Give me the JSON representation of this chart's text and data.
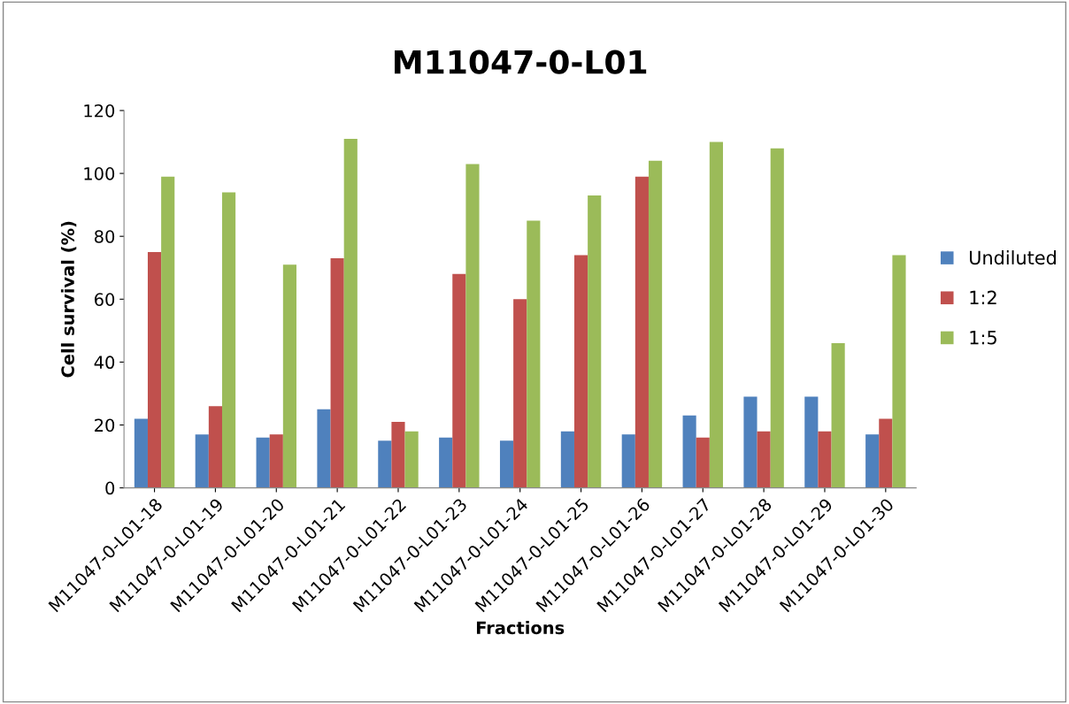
{
  "chart_data": {
    "type": "bar",
    "title": "M11047-0-L01",
    "xlabel": "Fractions",
    "ylabel": "Cell survival (%)",
    "categories": [
      "M11047-0-L01-18",
      "M11047-0-L01-19",
      "M11047-0-L01-20",
      "M11047-0-L01-21",
      "M11047-0-L01-22",
      "M11047-0-L01-23",
      "M11047-0-L01-24",
      "M11047-0-L01-25",
      "M11047-0-L01-26",
      "M11047-0-L01-27",
      "M11047-0-L01-28",
      "M11047-0-L01-29",
      "M11047-0-L01-30"
    ],
    "series": [
      {
        "name": "Undiluted",
        "color": "#4f81bd",
        "values": [
          22,
          17,
          16,
          25,
          15,
          16,
          15,
          18,
          17,
          23,
          29,
          29,
          17
        ]
      },
      {
        "name": "1:2",
        "color": "#c0504d",
        "values": [
          75,
          26,
          17,
          73,
          21,
          68,
          60,
          74,
          99,
          16,
          18,
          18,
          22
        ]
      },
      {
        "name": "1:5",
        "color": "#9bbb59",
        "values": [
          99,
          94,
          71,
          111,
          18,
          103,
          85,
          93,
          104,
          110,
          108,
          46,
          74
        ]
      }
    ],
    "ylim": [
      0,
      120
    ],
    "yticks": [
      0,
      20,
      40,
      60,
      80,
      100,
      120
    ],
    "grid": false,
    "legend": "right"
  }
}
